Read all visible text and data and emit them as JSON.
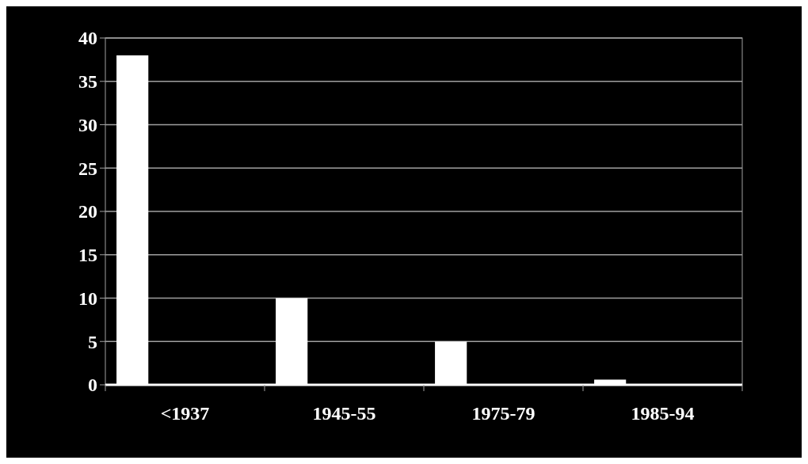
{
  "chart_data": {
    "type": "bar",
    "categories": [
      "<1937",
      "1945-55",
      "1975-79",
      "1985-94"
    ],
    "values": [
      38,
      10,
      5,
      0.6
    ],
    "color": "#ffffff",
    "ylim": [
      0,
      40
    ],
    "yticks": [
      0,
      5,
      10,
      15,
      20,
      25,
      30,
      35,
      40
    ],
    "grid": "y"
  }
}
